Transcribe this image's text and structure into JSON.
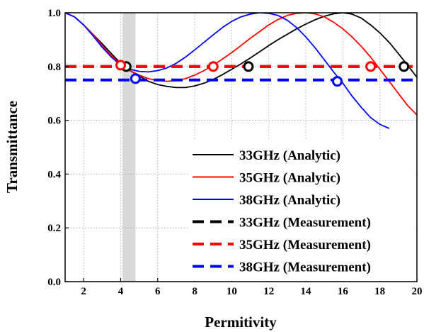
{
  "chart_data": {
    "type": "line",
    "title": "",
    "xlabel": "Permitivity",
    "ylabel": "Transmittance",
    "xlim": [
      1,
      20
    ],
    "ylim": [
      0.0,
      1.0
    ],
    "xticks": [
      2,
      4,
      6,
      8,
      10,
      12,
      14,
      16,
      18,
      20
    ],
    "yticks": [
      0.0,
      0.2,
      0.4,
      0.6,
      0.8,
      1.0
    ],
    "xtick_labels": [
      "2",
      "4",
      "6",
      "8",
      "10",
      "12",
      "14",
      "16",
      "18",
      "20"
    ],
    "ytick_labels": [
      "0.0",
      "0.2",
      "0.4",
      "0.6",
      "0.8",
      "1.0"
    ],
    "grid": true,
    "legend_position": "bottom-right",
    "highlight_band": {
      "x_range": [
        4.1,
        4.8
      ],
      "color": "#d9d9d9"
    },
    "series": [
      {
        "name": "33GHz (Analytic)",
        "style": "solid",
        "color": "#000000",
        "x": [
          1,
          1.5,
          2,
          2.5,
          3,
          3.5,
          4,
          4.5,
          5,
          5.5,
          6,
          6.5,
          7,
          7.5,
          8,
          8.5,
          9,
          9.5,
          10,
          10.5,
          11,
          11.5,
          12,
          12.5,
          13,
          13.5,
          14,
          14.5,
          15,
          15.5,
          16,
          16.5,
          17,
          17.5,
          18,
          18.5,
          19,
          19.5,
          20
        ],
        "y": [
          1.0,
          0.985,
          0.955,
          0.92,
          0.885,
          0.848,
          0.812,
          0.785,
          0.765,
          0.745,
          0.733,
          0.726,
          0.722,
          0.722,
          0.728,
          0.738,
          0.752,
          0.77,
          0.79,
          0.81,
          0.832,
          0.855,
          0.878,
          0.9,
          0.92,
          0.94,
          0.958,
          0.974,
          0.987,
          0.996,
          1.0,
          0.995,
          0.98,
          0.955,
          0.925,
          0.89,
          0.848,
          0.805,
          0.76
        ]
      },
      {
        "name": "35GHz (Analytic)",
        "style": "solid",
        "color": "#ff0000",
        "x": [
          1,
          1.5,
          2,
          2.5,
          3,
          3.5,
          4,
          4.5,
          5,
          5.5,
          6,
          6.5,
          7,
          7.5,
          8,
          8.5,
          9,
          9.5,
          10,
          10.5,
          11,
          11.5,
          12,
          12.5,
          13,
          13.5,
          14,
          14.5,
          15,
          15.5,
          16,
          16.5,
          17,
          17.5,
          18,
          18.5,
          19,
          19.5,
          20
        ],
        "y": [
          1.0,
          0.985,
          0.955,
          0.92,
          0.878,
          0.84,
          0.808,
          0.785,
          0.768,
          0.755,
          0.748,
          0.745,
          0.748,
          0.755,
          0.768,
          0.785,
          0.805,
          0.828,
          0.852,
          0.878,
          0.905,
          0.93,
          0.955,
          0.975,
          0.99,
          0.998,
          1.0,
          0.996,
          0.985,
          0.965,
          0.94,
          0.91,
          0.875,
          0.835,
          0.79,
          0.745,
          0.7,
          0.655,
          0.62
        ]
      },
      {
        "name": "38GHz (Analytic)",
        "style": "solid",
        "color": "#0000ff",
        "x": [
          1,
          1.5,
          2,
          2.5,
          3,
          3.5,
          4,
          4.5,
          5,
          5.5,
          6,
          6.5,
          7,
          7.5,
          8,
          8.5,
          9,
          9.5,
          10,
          10.5,
          11,
          11.5,
          12,
          12.5,
          13,
          13.5,
          14,
          14.5,
          15,
          15.5,
          16,
          16.5,
          17,
          17.5,
          18,
          18.5
        ],
        "y": [
          1.0,
          0.985,
          0.955,
          0.915,
          0.872,
          0.835,
          0.805,
          0.79,
          0.782,
          0.78,
          0.785,
          0.795,
          0.812,
          0.835,
          0.862,
          0.89,
          0.918,
          0.945,
          0.968,
          0.985,
          0.995,
          1.0,
          0.998,
          0.99,
          0.972,
          0.945,
          0.91,
          0.87,
          0.825,
          0.78,
          0.738,
          0.69,
          0.648,
          0.61,
          0.585,
          0.57
        ]
      },
      {
        "name": "33GHz (Measurement)",
        "style": "dashed",
        "color": "#000000",
        "y_level": 0.8,
        "markers": [
          [
            4.3,
            0.8
          ],
          [
            10.9,
            0.8
          ],
          [
            19.3,
            0.8
          ]
        ]
      },
      {
        "name": "35GHz (Measurement)",
        "style": "dashed",
        "color": "#ff0000",
        "y_level": 0.8,
        "markers": [
          [
            4.0,
            0.805
          ],
          [
            9.0,
            0.8
          ],
          [
            17.5,
            0.8
          ]
        ]
      },
      {
        "name": "38GHz (Measurement)",
        "style": "dashed",
        "color": "#0000ff",
        "y_level": 0.75,
        "markers": [
          [
            4.8,
            0.755
          ],
          [
            15.7,
            0.745
          ]
        ]
      }
    ]
  }
}
